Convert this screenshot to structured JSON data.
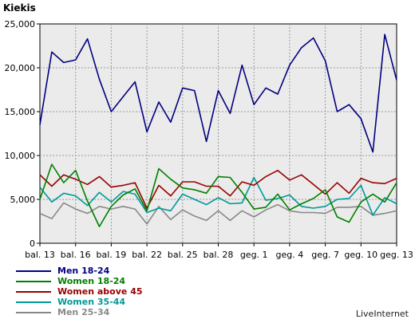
{
  "chart_data": {
    "type": "line",
    "ylabel": "Kiekis",
    "ylim": [
      0,
      25000
    ],
    "yticks": [
      "0",
      "5,000",
      "10,000",
      "15,000",
      "20,000",
      "25,000"
    ],
    "grid": true,
    "legend_position": "bottom-left",
    "x_tick_labels": [
      "bal. 13",
      "bal. 16",
      "bal. 19",
      "bal. 22",
      "bal. 25",
      "bal. 28",
      "geg. 1",
      "geg. 4",
      "geg. 7",
      "geg. 10",
      "geg. 13"
    ],
    "series": [
      {
        "name": "Men 18-24",
        "color": "#000080",
        "values": [
          13500,
          21800,
          20600,
          20900,
          23300,
          18700,
          15000,
          16700,
          18400,
          12700,
          16100,
          13800,
          17700,
          17400,
          11600,
          17400,
          14800,
          20300,
          15800,
          17700,
          17000,
          20300,
          22300,
          23400,
          20800,
          15000,
          15800,
          14200,
          10400,
          23800,
          18600
        ]
      },
      {
        "name": "Women 18-24",
        "color": "#008000",
        "values": [
          5000,
          9000,
          6900,
          8300,
          4800,
          1900,
          4200,
          5500,
          6200,
          3700,
          8500,
          7300,
          6300,
          6100,
          5700,
          7600,
          7500,
          5800,
          3900,
          4100,
          5600,
          3800,
          4500,
          5100,
          6100,
          3000,
          2400,
          4700,
          5600,
          4700,
          6900
        ]
      },
      {
        "name": "Women above 45",
        "color": "#990000",
        "values": [
          7800,
          6500,
          7800,
          7300,
          6700,
          7600,
          6400,
          6600,
          6900,
          4000,
          6600,
          5400,
          7000,
          7000,
          6500,
          6500,
          5400,
          7000,
          6600,
          7600,
          8300,
          7200,
          7800,
          6700,
          5600,
          6900,
          5700,
          7400,
          6900,
          6800,
          7400
        ]
      },
      {
        "name": "Women 35-44",
        "color": "#009999",
        "values": [
          6400,
          4700,
          5700,
          5400,
          4300,
          5800,
          4700,
          5900,
          5600,
          3500,
          4000,
          3700,
          5600,
          5000,
          4400,
          5200,
          4500,
          4600,
          7500,
          4900,
          5100,
          5500,
          4200,
          4000,
          4200,
          5000,
          5100,
          6600,
          3200,
          5200,
          4500
        ]
      },
      {
        "name": "Men 25-34",
        "color": "#888888",
        "values": [
          3400,
          2800,
          4600,
          3900,
          3400,
          4200,
          3900,
          4200,
          3900,
          2200,
          4200,
          2700,
          3800,
          3100,
          2600,
          3700,
          2600,
          3700,
          3000,
          3800,
          4400,
          3700,
          3500,
          3500,
          3400,
          4100,
          4100,
          4200,
          3200,
          3400,
          3700
        ]
      }
    ]
  },
  "brand": "LiveInternet"
}
